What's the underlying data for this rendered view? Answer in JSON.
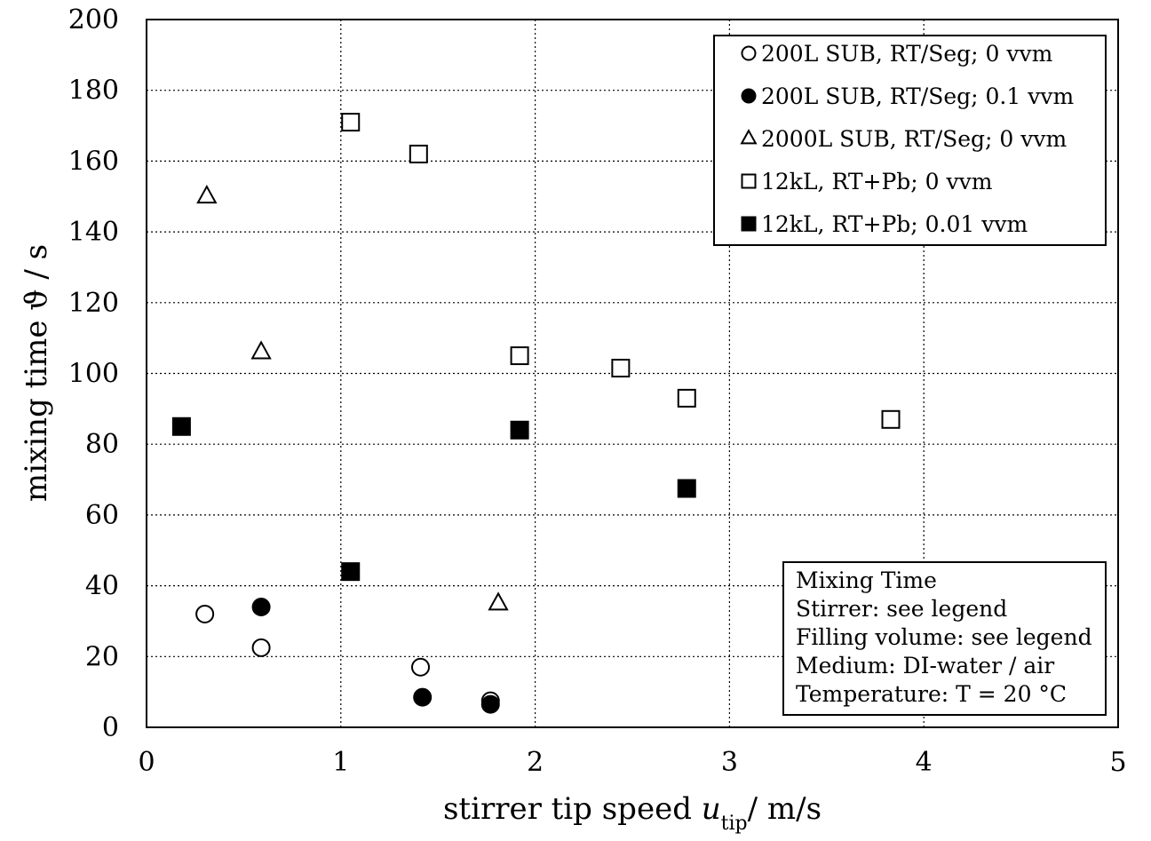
{
  "chart_data": {
    "type": "scatter",
    "xlabel_main": "stirrer tip speed ",
    "xlabel_var": "u",
    "xlabel_sub": "tip",
    "xlabel_unit": "/ m/s",
    "ylabel": "mixing time ϑ / s",
    "xlim": [
      0,
      5
    ],
    "ylim": [
      0,
      200
    ],
    "xticks": [
      "0",
      "1",
      "2",
      "3",
      "4",
      "5"
    ],
    "yticks": [
      "0",
      "20",
      "40",
      "60",
      "80",
      "100",
      "120",
      "140",
      "160",
      "180",
      "200"
    ],
    "grid": true,
    "legend_position": "top-right",
    "series": [
      {
        "name": "200L SUB, RT/Seg; 0 vvm",
        "marker": "circle-open",
        "points": [
          [
            0.3,
            32
          ],
          [
            0.59,
            22.5
          ],
          [
            1.41,
            17
          ],
          [
            1.77,
            7.5
          ]
        ]
      },
      {
        "name": "200L SUB, RT/Seg; 0.1 vvm",
        "marker": "circle-filled",
        "points": [
          [
            0.59,
            34
          ],
          [
            1.42,
            8.5
          ],
          [
            1.77,
            6.5
          ]
        ]
      },
      {
        "name": "2000L SUB, RT/Seg; 0 vvm",
        "marker": "triangle-open",
        "points": [
          [
            0.31,
            150
          ],
          [
            0.59,
            106
          ],
          [
            1.81,
            35
          ]
        ]
      },
      {
        "name": "12kL, RT+Pb; 0 vvm",
        "marker": "square-open",
        "points": [
          [
            1.05,
            171
          ],
          [
            1.4,
            162
          ],
          [
            1.92,
            105
          ],
          [
            2.44,
            101.5
          ],
          [
            2.78,
            93
          ],
          [
            3.83,
            87
          ]
        ]
      },
      {
        "name": "12kL, RT+Pb; 0.01 vvm",
        "marker": "square-filled",
        "points": [
          [
            0.18,
            85
          ],
          [
            1.05,
            44
          ],
          [
            1.92,
            84
          ],
          [
            2.78,
            67.5
          ]
        ]
      }
    ],
    "annotation": [
      "Mixing Time",
      "Stirrer: see legend",
      "Filling volume: see legend",
      "Medium: DI-water / air",
      "Temperature: T = 20 °C"
    ]
  }
}
